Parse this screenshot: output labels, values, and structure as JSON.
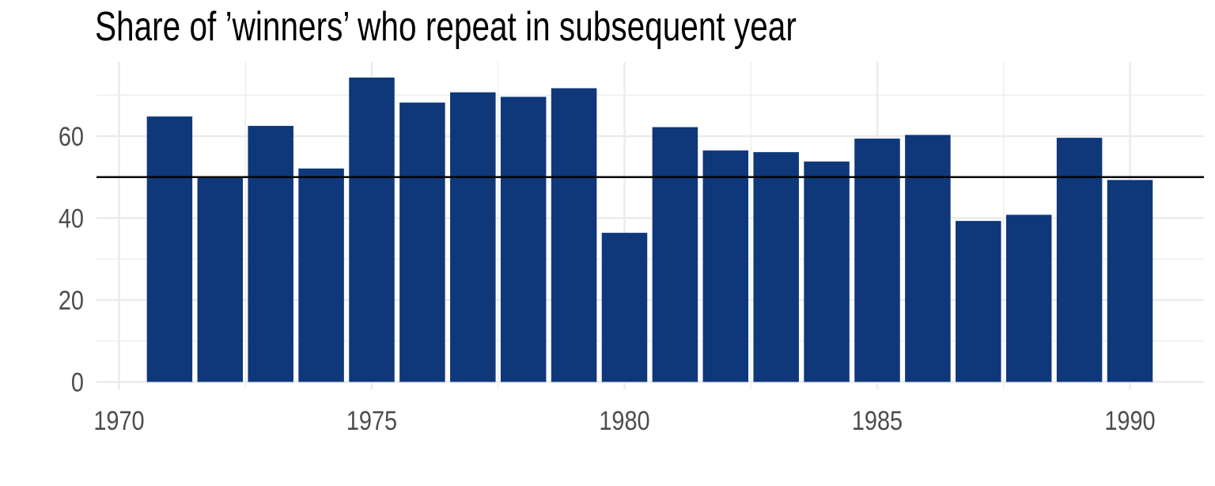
{
  "chart_data": {
    "type": "bar",
    "title": "Share of ’winners’ who repeat in subsequent year",
    "xlabel": "",
    "ylabel": "",
    "x": [
      1971,
      1972,
      1973,
      1974,
      1975,
      1976,
      1977,
      1978,
      1979,
      1980,
      1981,
      1982,
      1983,
      1984,
      1985,
      1986,
      1987,
      1988,
      1989,
      1990
    ],
    "values": [
      64.8,
      49.8,
      62.5,
      52.1,
      74.3,
      68.2,
      70.7,
      69.6,
      71.7,
      36.4,
      62.2,
      56.5,
      56.1,
      53.8,
      59.4,
      60.3,
      39.3,
      40.8,
      59.6,
      49.3
    ],
    "xlim": [
      1970,
      1991.5
    ],
    "ylim": [
      0,
      78
    ],
    "xticks": [
      1970,
      1975,
      1980,
      1985,
      1990
    ],
    "yticks": [
      0,
      20,
      40,
      60
    ],
    "reference_line": 50,
    "grid": true,
    "colors": {
      "bar": "#0f387a",
      "reference_line": "#000000",
      "grid": "#ebebeb",
      "tick_label": "#4d4d4d"
    }
  }
}
